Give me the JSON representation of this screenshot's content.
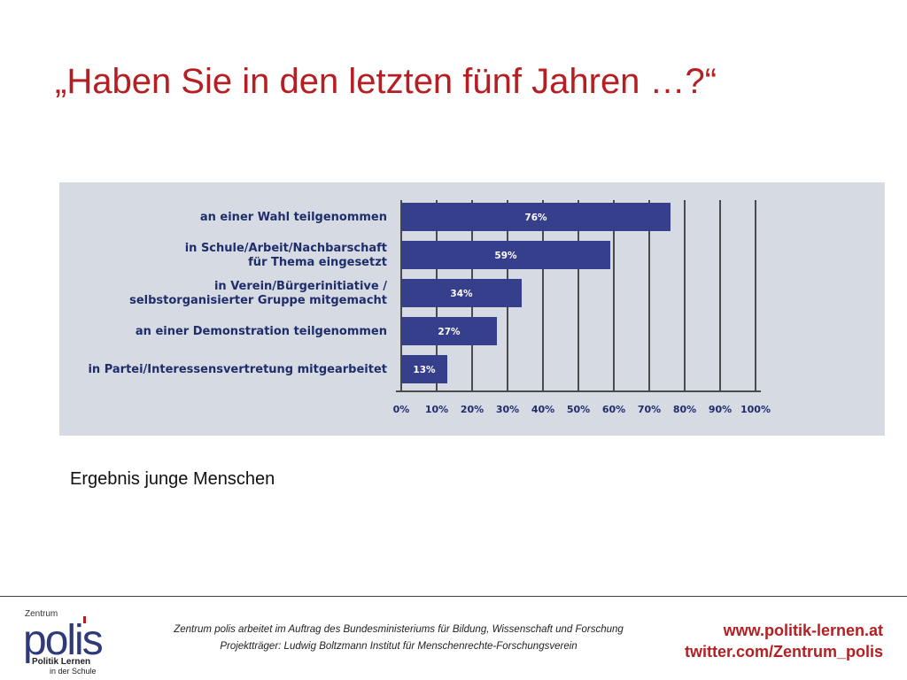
{
  "slide": {
    "title": "„Haben Sie in den letzten fünf Jahren …?“",
    "caption": "Ergebnis junge Menschen"
  },
  "footer": {
    "logo_top": "Zentrum",
    "logo_main": "polis",
    "logo_sub1": "Politik Lernen",
    "logo_sub2": "in der Schule",
    "note_line1": "Zentrum polis arbeitet im Auftrag des Bundesministeriums für Bildung, Wissenschaft und Forschung",
    "note_line2": "Projektträger: Ludwig Boltzmann Institut für Menschenrechte-Forschungsverein",
    "link_web": "www.politik-lernen.at",
    "link_twitter": "twitter.com/Zentrum_polis"
  },
  "colors": {
    "title": "#b51e22",
    "bar": "#363f8c",
    "panel": "#d6dae3",
    "label": "#1f2d6b"
  },
  "chart_data": {
    "type": "bar",
    "orientation": "horizontal",
    "categories": [
      [
        "an einer Wahl teilgenommen"
      ],
      [
        "in Schule/Arbeit/Nachbarschaft",
        "für Thema eingesetzt"
      ],
      [
        "in Verein/Bürgerinitiative /",
        "selbstorganisierter Gruppe mitgemacht"
      ],
      [
        "an einer Demonstration teilgenommen"
      ],
      [
        "in Partei/Interessensvertretung mitgearbeitet"
      ]
    ],
    "values": [
      76,
      59,
      34,
      27,
      13
    ],
    "value_labels": [
      "76%",
      "59%",
      "34%",
      "27%",
      "13%"
    ],
    "xlim": [
      0,
      100
    ],
    "xticks": [
      "0%",
      "10%",
      "20%",
      "30%",
      "40%",
      "50%",
      "60%",
      "70%",
      "80%",
      "90%",
      "100%"
    ],
    "grid": true
  }
}
